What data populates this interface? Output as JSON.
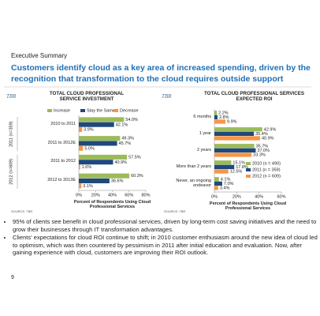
{
  "header": {
    "section": "Executive Summary",
    "title": "Customers identify cloud as a key area of increased spending, driven by the recognition that transformation to the cloud requires outside support"
  },
  "chart_data": [
    {
      "type": "bar",
      "orientation": "horizontal",
      "logo": "TBR",
      "title": "TOTAL CLOUD PROFESSIONAL SERVICE INVESTMENT",
      "categories": [
        "2010 to 2011",
        "2011 to 2012E",
        "2011 to 2012",
        "2012 to 2013E"
      ],
      "group_labels": [
        "2011 (n=359)",
        "2012 (n=609)"
      ],
      "series": [
        {
          "name": "Increase",
          "color": "#9bbb59",
          "values": [
            54.0,
            49.3,
            57.5,
            60.3
          ],
          "value_labels": [
            "54.0%",
            "49.3%",
            "57.5%",
            "60.3%"
          ]
        },
        {
          "name": "Stay the Same",
          "color": "#1f497d",
          "values": [
            42.1,
            45.7,
            40.9,
            36.6
          ],
          "value_labels": [
            "42.1%",
            "45.7%",
            "40.9%",
            "36.6%"
          ]
        },
        {
          "name": "Decrease",
          "color": "#f79646",
          "values": [
            3.9,
            5.0,
            1.6,
            3.1
          ],
          "value_labels": [
            "3.9%",
            "5.0%",
            "1.6%",
            "3.1%"
          ]
        }
      ],
      "xlim": [
        0,
        80
      ],
      "xticks": [
        {
          "value": 0,
          "label": "0%"
        },
        {
          "value": 20,
          "label": "20%"
        },
        {
          "value": 40,
          "label": "40%"
        },
        {
          "value": 60,
          "label": "60%"
        },
        {
          "value": 80,
          "label": "80%"
        }
      ],
      "xlabel": "Percent of Respondents Using Cloud Professional Services",
      "source": "SOURCE: TBR",
      "legend": "top",
      "grid": false
    },
    {
      "type": "bar",
      "orientation": "horizontal",
      "logo": "TBR",
      "title": "TOTAL CLOUD PROFESSIONAL SERVICES EXPECTED ROI",
      "categories": [
        "6 months",
        "1 year",
        "2 years",
        "More than 2 years",
        "Never, an ongoing endeavor"
      ],
      "series": [
        {
          "name": "2010 (n = 490)",
          "color": "#9bbb59",
          "values": [
            2.2,
            42.9,
            35.7,
            15.1,
            4.1
          ],
          "value_labels": [
            "2.2%",
            "42.9%",
            "35.7%",
            "15.1%",
            "4.1%"
          ]
        },
        {
          "name": "2011 (n = 359)",
          "color": "#1f497d",
          "values": [
            2.8,
            35.4,
            37.0,
            17.8,
            7.0
          ],
          "value_labels": [
            "2.8%",
            "35.4%",
            "37.0%",
            "17.8%",
            "7.0%"
          ]
        },
        {
          "name": "2012 (n = 609)",
          "color": "#f79646",
          "values": [
            9.9,
            40.9,
            33.3,
            12.5,
            3.4
          ],
          "value_labels": [
            "9.9%",
            "40.9%",
            "33.3%",
            "12.5%",
            "3.4%"
          ]
        }
      ],
      "xlim": [
        0,
        60
      ],
      "xticks": [
        {
          "value": 0,
          "label": "0%"
        },
        {
          "value": 20,
          "label": "20%"
        },
        {
          "value": 40,
          "label": "40%"
        },
        {
          "value": 60,
          "label": "60%"
        }
      ],
      "xlabel": "Percent of Respondents Using Cloud Professional Services",
      "source": "SOURCE: TBR",
      "legend": "lower right",
      "grid": false
    }
  ],
  "bullets": [
    "95% of clients see benefit in cloud professional services, driven by long-term cost saving initiatives and the need to grow their businesses through IT transformation advantages.",
    "Clients' expectations for cloud ROI continue to shift; in 2010 customer enthusiasm around the new idea of cloud led to optimism, which was then countered by pessimism in 2011 after initial education and evaluation. Now, after gaining experience with cloud, customers are improving their ROI outlook."
  ],
  "page_number": "9"
}
